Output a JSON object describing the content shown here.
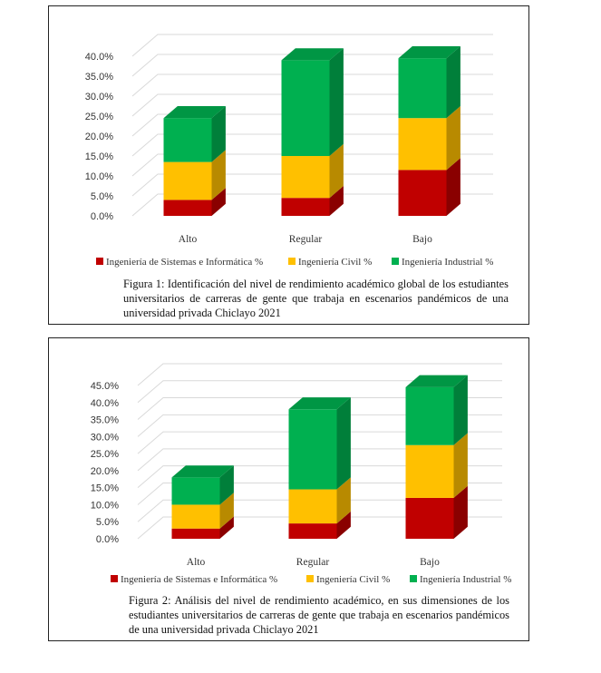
{
  "colors": {
    "series": [
      "#c00000",
      "#ffc000",
      "#00b050"
    ],
    "grid": "#d9d9d9",
    "text": "#333333"
  },
  "figures": [
    {
      "caption": "Figura 1: Identificación del nivel de rendimiento académico global de los estudiantes universitarios de carreras de gente que trabaja en escenarios pandémicos de una universidad privada Chiclayo 2021"
    },
    {
      "caption": "Figura 2: Análisis del nivel de rendimiento académico, en sus dimensiones de los estudiantes universitarios de carreras de gente que trabaja en escenarios pandémicos de una universidad privada Chiclayo 2021"
    }
  ],
  "chart_data": [
    {
      "type": "bar",
      "stacked": true,
      "style": "3d",
      "categories": [
        "Alto",
        "Regular",
        "Bajo"
      ],
      "series": [
        {
          "name": "Ingeniería de Sistemas e Informática %",
          "values": [
            4.0,
            4.5,
            11.5
          ]
        },
        {
          "name": "Ingeniería Civil %",
          "values": [
            9.5,
            10.5,
            13.0
          ]
        },
        {
          "name": "Ingeniería Industrial %",
          "values": [
            11.0,
            24.0,
            15.0
          ]
        }
      ],
      "y_ticks": [
        "0.0%",
        "5.0%",
        "10.0%",
        "15.0%",
        "20.0%",
        "25.0%",
        "30.0%",
        "35.0%",
        "40.0%"
      ],
      "ylim": [
        0,
        40
      ],
      "grid": true,
      "legend": "bottom"
    },
    {
      "type": "bar",
      "stacked": true,
      "style": "3d",
      "categories": [
        "Alto",
        "Regular",
        "Bajo"
      ],
      "series": [
        {
          "name": "Ingeniería de Sistemas e Informática %",
          "values": [
            3.0,
            4.5,
            12.0
          ]
        },
        {
          "name": "Ingeniería Civil %",
          "values": [
            7.0,
            10.0,
            15.5
          ]
        },
        {
          "name": "Ingeniería Industrial %",
          "values": [
            8.0,
            23.5,
            17.0
          ]
        }
      ],
      "y_ticks": [
        "0.0%",
        "5.0%",
        "10.0%",
        "15.0%",
        "20.0%",
        "25.0%",
        "30.0%",
        "35.0%",
        "40.0%",
        "45.0%"
      ],
      "ylim": [
        0,
        45
      ],
      "grid": true,
      "legend": "bottom"
    }
  ]
}
